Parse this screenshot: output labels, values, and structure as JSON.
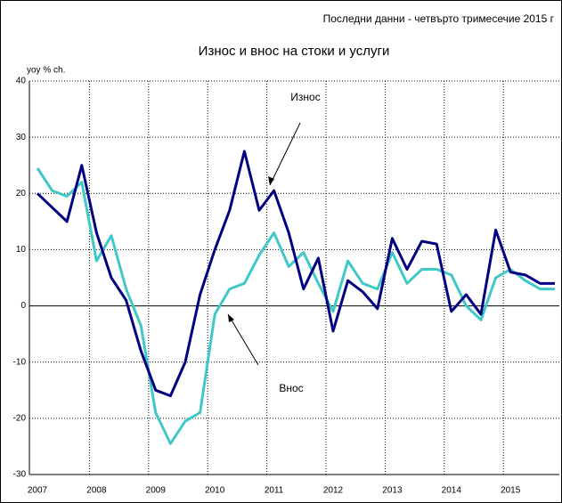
{
  "chart_data": {
    "type": "line",
    "note": "Последни данни - четвърто тримесечие 2015 г",
    "title": "Износ и внос на стоки и услуги",
    "y_label": "yoy % ch.",
    "categories": [
      "2007",
      null,
      null,
      null,
      "2008",
      null,
      null,
      null,
      "2009",
      null,
      null,
      null,
      "2010",
      null,
      null,
      null,
      "2011",
      null,
      null,
      null,
      "2012",
      null,
      null,
      null,
      "2013",
      null,
      null,
      null,
      "2014",
      null,
      null,
      null,
      "2015",
      null,
      null,
      null
    ],
    "series": [
      {
        "name": "Износ",
        "color": "#000080",
        "values": [
          20,
          17.5,
          15,
          25,
          13,
          5,
          1,
          -8,
          -15,
          -16,
          -10,
          2,
          10,
          17,
          27.5,
          17,
          20.5,
          13,
          3,
          8.5,
          -4.5,
          4.5,
          2.5,
          -0.5,
          12,
          6.5,
          11.5,
          11,
          -1,
          2,
          -1.5,
          13.5,
          6,
          5.5,
          4,
          4
        ]
      },
      {
        "name": "Внос",
        "color": "#40c8c8",
        "values": [
          24.5,
          20.5,
          19.5,
          22,
          8,
          12.5,
          3,
          -3.5,
          -19,
          -24.5,
          -20.5,
          -19,
          -1.5,
          3,
          4,
          9,
          13,
          7,
          9.5,
          4,
          -1,
          8,
          4,
          3,
          9.5,
          4,
          6.5,
          6.5,
          5.5,
          0,
          -2.5,
          5,
          6.5,
          4.5,
          3,
          3
        ]
      }
    ],
    "ylim": [
      -30,
      40
    ],
    "yticks": [
      -30,
      -20,
      -10,
      0,
      10,
      20,
      30,
      40
    ],
    "grid": true
  }
}
